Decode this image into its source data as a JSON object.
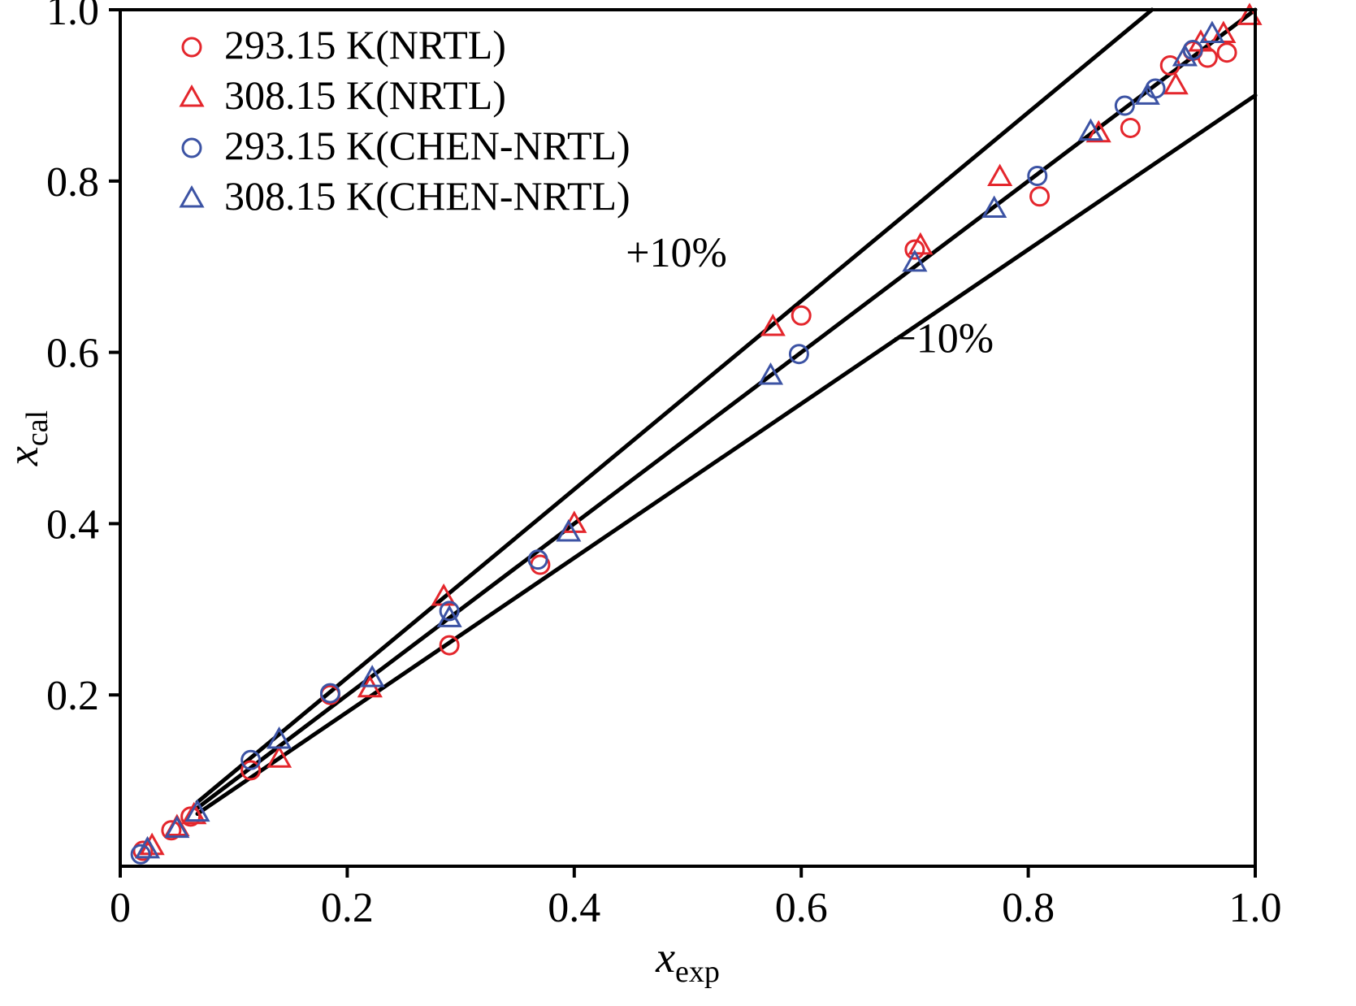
{
  "chart_data": {
    "type": "scatter",
    "title": "",
    "xlabel_main": "x",
    "xlabel_sub": "exp",
    "ylabel_main": "x",
    "ylabel_sub": "cal",
    "xlim": [
      0,
      1
    ],
    "ylim": [
      0,
      1
    ],
    "grid": false,
    "legend_position": "top-left",
    "frame_color": "#000000",
    "line_color": "#000000",
    "xticks": [
      0,
      0.2,
      0.4,
      0.6,
      0.8,
      1.0
    ],
    "xtick_labels": [
      "0",
      "0.2",
      "0.4",
      "0.6",
      "0.8",
      "1.0"
    ],
    "yticks": [
      0.2,
      0.4,
      0.6,
      0.8,
      1.0
    ],
    "ytick_labels": [
      "0.2",
      "0.4",
      "0.6",
      "0.8",
      "1.0"
    ],
    "lines": [
      {
        "name": "plus10-line",
        "points": [
          [
            0.068,
            0.0748
          ],
          [
            0.909,
            1.0
          ]
        ]
      },
      {
        "name": "identity-line",
        "points": [
          [
            0.068,
            0.068
          ],
          [
            1.0,
            1.0
          ]
        ]
      },
      {
        "name": "minus10-line",
        "points": [
          [
            0.068,
            0.0612
          ],
          [
            1.0,
            0.9
          ]
        ]
      }
    ],
    "annotations": [
      {
        "text": "+10%",
        "x": 0.49,
        "y": 0.7
      },
      {
        "text": "−10%",
        "x": 0.725,
        "y": 0.6
      }
    ],
    "series": [
      {
        "name": "293.15 K(NRTL)",
        "marker": "circle",
        "color": "#e4262c",
        "points": [
          [
            0.02,
            0.018
          ],
          [
            0.045,
            0.042
          ],
          [
            0.062,
            0.058
          ],
          [
            0.115,
            0.112
          ],
          [
            0.185,
            0.2
          ],
          [
            0.29,
            0.258
          ],
          [
            0.37,
            0.352
          ],
          [
            0.6,
            0.643
          ],
          [
            0.7,
            0.72
          ],
          [
            0.81,
            0.782
          ],
          [
            0.89,
            0.862
          ],
          [
            0.925,
            0.935
          ],
          [
            0.945,
            0.952
          ],
          [
            0.958,
            0.944
          ],
          [
            0.975,
            0.95
          ]
        ]
      },
      {
        "name": "308.15 K(NRTL)",
        "marker": "triangle",
        "color": "#e4262c",
        "points": [
          [
            0.028,
            0.024
          ],
          [
            0.05,
            0.046
          ],
          [
            0.065,
            0.06
          ],
          [
            0.14,
            0.126
          ],
          [
            0.22,
            0.208
          ],
          [
            0.285,
            0.315
          ],
          [
            0.4,
            0.4
          ],
          [
            0.575,
            0.63
          ],
          [
            0.705,
            0.725
          ],
          [
            0.775,
            0.805
          ],
          [
            0.862,
            0.856
          ],
          [
            0.93,
            0.912
          ],
          [
            0.952,
            0.962
          ],
          [
            0.972,
            0.972
          ],
          [
            0.995,
            0.993
          ]
        ]
      },
      {
        "name": "293.15 K(CHEN-NRTL)",
        "marker": "circle",
        "color": "#3c53a4",
        "points": [
          [
            0.018,
            0.014
          ],
          [
            0.115,
            0.124
          ],
          [
            0.185,
            0.202
          ],
          [
            0.29,
            0.298
          ],
          [
            0.368,
            0.358
          ],
          [
            0.598,
            0.598
          ],
          [
            0.808,
            0.806
          ],
          [
            0.885,
            0.888
          ],
          [
            0.912,
            0.908
          ],
          [
            0.945,
            0.953
          ]
        ]
      },
      {
        "name": "308.15 K(CHEN-NRTL)",
        "marker": "triangle",
        "color": "#3c53a4",
        "points": [
          [
            0.024,
            0.02
          ],
          [
            0.05,
            0.044
          ],
          [
            0.068,
            0.063
          ],
          [
            0.14,
            0.148
          ],
          [
            0.222,
            0.22
          ],
          [
            0.29,
            0.29
          ],
          [
            0.395,
            0.39
          ],
          [
            0.573,
            0.573
          ],
          [
            0.7,
            0.705
          ],
          [
            0.77,
            0.768
          ],
          [
            0.855,
            0.858
          ],
          [
            0.905,
            0.9
          ],
          [
            0.938,
            0.945
          ],
          [
            0.962,
            0.972
          ]
        ]
      }
    ]
  }
}
